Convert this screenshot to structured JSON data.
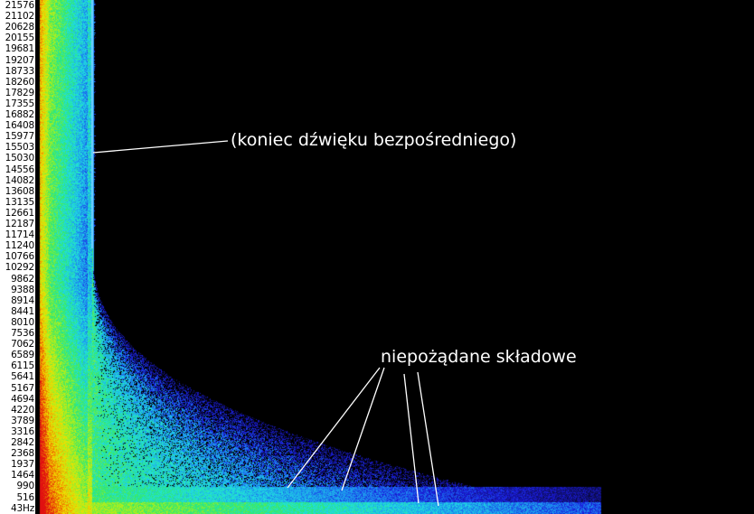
{
  "chart_data": {
    "type": "heatmap",
    "title": "",
    "ylabel": "",
    "xlabel": "",
    "yticks": [
      "21576",
      "21102",
      "20628",
      "20155",
      "19681",
      "19207",
      "18733",
      "18260",
      "17829",
      "17355",
      "16882",
      "16408",
      "15977",
      "15503",
      "15030",
      "14556",
      "14082",
      "13608",
      "13135",
      "12661",
      "12187",
      "11714",
      "11240",
      "10766",
      "10292",
      "9862",
      "9388",
      "8914",
      "8441",
      "8010",
      "7536",
      "7062",
      "6589",
      "6115",
      "5641",
      "5167",
      "4694",
      "4220",
      "3789",
      "3316",
      "2842",
      "2368",
      "1937",
      "1464",
      "990",
      "516",
      "43Hz"
    ],
    "colormap": [
      "#000000",
      "#101070",
      "#1a1adc",
      "#1c8cf0",
      "#20e0e0",
      "#30e870",
      "#a8f020",
      "#f0e000",
      "#f07800",
      "#e01010"
    ],
    "annotations": [
      {
        "text": "(koniec dźwięku bezpośredniego)"
      },
      {
        "text": "niepożądane składowe"
      }
    ]
  }
}
